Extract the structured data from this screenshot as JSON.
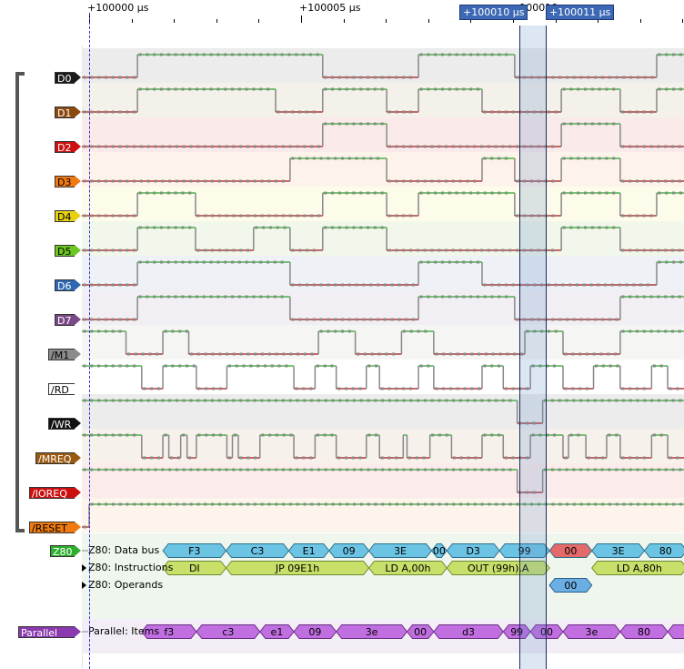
{
  "ruler": {
    "labels": [
      {
        "text": "+100000 µs",
        "t": 0
      },
      {
        "text": "+100005 µs",
        "t": 5
      },
      {
        "text": "+100010 µs",
        "t": 10
      }
    ],
    "minor_tick_step_us": 1
  },
  "cursors": [
    {
      "label": "+100010 µs",
      "t": 10.15
    },
    {
      "label": "+100011 µs",
      "t": 10.75
    }
  ],
  "trigger_t": 0,
  "time_range": {
    "start_us": -0.17,
    "end_us": 14.0
  },
  "signals": [
    {
      "name": "D0",
      "color": "#1a1a1a",
      "text_color": "#ffffff",
      "bg": "#ececec",
      "initial": 0,
      "edges": [
        1.14,
        5.51,
        7.77,
        10.04,
        13.39
      ]
    },
    {
      "name": "D1",
      "color": "#8a4a0e",
      "text_color": "#ffffff",
      "bg": "#f4f0ea",
      "initial": 0,
      "edges": [
        1.14,
        4.4,
        5.51,
        7.02,
        7.77,
        9.27,
        11.14,
        12.53,
        13.39
      ]
    },
    {
      "name": "D2",
      "color": "#cc1010",
      "text_color": "#ffffff",
      "bg": "#fbeaea",
      "initial": 0,
      "edges": [
        5.51,
        7.02,
        11.14,
        12.53
      ]
    },
    {
      "name": "D3",
      "color": "#f07a10",
      "text_color": "#000000",
      "bg": "#fdf3ea",
      "initial": 0,
      "edges": [
        4.74,
        7.02,
        9.27,
        10.04,
        11.14,
        12.53
      ]
    },
    {
      "name": "D4",
      "color": "#e8d010",
      "text_color": "#000000",
      "bg": "#fdfbea",
      "initial": 0,
      "edges": [
        1.14,
        2.51,
        5.51,
        7.02,
        7.77,
        10.04,
        11.14,
        12.53,
        13.39
      ]
    },
    {
      "name": "D5",
      "color": "#6cc820",
      "text_color": "#000000",
      "bg": "#f1f7ea",
      "initial": 0,
      "edges": [
        1.14,
        2.51,
        3.88,
        4.74,
        5.51,
        7.02,
        11.14,
        12.53
      ]
    },
    {
      "name": "D6",
      "color": "#2e68b0",
      "text_color": "#ffffff",
      "bg": "#eef1f6",
      "initial": 0,
      "edges": [
        1.14,
        4.74,
        7.77,
        9.27,
        13.39
      ]
    },
    {
      "name": "D7",
      "color": "#7a4a86",
      "text_color": "#ffffff",
      "bg": "#f1eff3",
      "initial": 0,
      "edges": [
        1.14,
        4.74,
        7.77,
        10.04,
        12.53
      ]
    },
    {
      "name": "/M1",
      "color": "#8c8c8c",
      "text_color": "#000000",
      "bg": "#f5f5f3",
      "initial": 1,
      "edges": [
        0.87,
        1.74,
        2.35,
        5.41,
        6.28,
        7.37,
        8.13,
        10.28,
        11.18,
        12.53
      ]
    },
    {
      "name": "/RD",
      "color": "#ffffff",
      "text_color": "#000000",
      "bg": "#ffffff",
      "initial": 1,
      "edges": [
        1.24,
        1.74,
        2.53,
        3.25,
        4.83,
        5.33,
        5.83,
        6.54,
        6.85,
        7.77,
        8.13,
        9.27,
        9.77,
        10.41,
        11.18,
        11.9,
        12.53,
        13.27,
        13.65
      ]
    },
    {
      "name": "/WR",
      "color": "#111111",
      "text_color": "#ffffff",
      "bg": "#ececec",
      "initial": 1,
      "edges": [
        10.1,
        10.7
      ]
    },
    {
      "name": "/MREQ",
      "color": "#9a5a10",
      "text_color": "#ffffff",
      "bg": "#f6f1eb",
      "initial": 1,
      "edges": [
        1.24,
        1.74,
        1.88,
        2.16,
        2.31,
        2.53,
        3.25,
        3.38,
        3.52,
        4.03,
        4.83,
        5.33,
        5.83,
        6.54,
        6.85,
        7.41,
        7.5,
        8.04,
        8.55,
        9.27,
        9.77,
        10.41,
        11.18,
        11.31,
        11.72,
        12.21,
        12.53,
        13.27,
        13.65
      ]
    },
    {
      "name": "/IOREQ",
      "color": "#cc1010",
      "text_color": "#ffffff",
      "bg": "#fbeceb",
      "initial": 1,
      "edges": [
        10.1,
        10.7
      ]
    },
    {
      "name": "/RESET",
      "color": "#f07a10",
      "text_color": "#000000",
      "bg": "#fdf4ec",
      "initial": 0,
      "edges": [
        0.0
      ]
    }
  ],
  "decoders": [
    {
      "name": "Z80",
      "label_color": "#2eae2e",
      "bg": "#eef6ee",
      "rows": [
        {
          "title": "Z80: Data bus",
          "has_expander": false,
          "fill": "#6cc4e4",
          "stroke": "#2e6e8a",
          "items": [
            {
              "text": "F3",
              "t0": 1.74,
              "t1": 3.23
            },
            {
              "text": "C3",
              "t0": 3.23,
              "t1": 4.71
            },
            {
              "text": "E1",
              "t0": 4.71,
              "t1": 5.66
            },
            {
              "text": "09",
              "t0": 5.66,
              "t1": 6.6
            },
            {
              "text": "3E",
              "t0": 6.6,
              "t1": 8.08
            },
            {
              "text": "00",
              "t0": 8.08,
              "t1": 8.44
            },
            {
              "text": "D3",
              "t0": 8.44,
              "t1": 9.68
            },
            {
              "text": "99",
              "t0": 9.68,
              "t1": 10.86
            },
            {
              "text": "00",
              "t0": 10.86,
              "t1": 11.86,
              "fill": "#e46a6a"
            },
            {
              "text": "3E",
              "t0": 11.86,
              "t1": 13.1
            },
            {
              "text": "80",
              "t0": 13.1,
              "t1": 14.1
            }
          ]
        },
        {
          "title": "Z80: Instructions",
          "has_expander": true,
          "fill": "#c8e06a",
          "stroke": "#6e8a2e",
          "items": [
            {
              "text": "DI",
              "t0": 1.74,
              "t1": 3.23
            },
            {
              "text": "JP 09E1h",
              "t0": 3.23,
              "t1": 6.6
            },
            {
              "text": "LD A,00h",
              "t0": 6.6,
              "t1": 8.44
            },
            {
              "text": "OUT (99h),A",
              "t0": 8.44,
              "t1": 10.86
            },
            {
              "text": "LD A,80h",
              "t0": 11.86,
              "t1": 14.1
            }
          ]
        },
        {
          "title": "Z80: Operands",
          "has_expander": true,
          "fill": "#6aaee4",
          "stroke": "#2e5e8a",
          "items": [
            {
              "text": "00",
              "t0": 10.86,
              "t1": 11.86
            }
          ]
        }
      ]
    },
    {
      "name": "Parallel",
      "label_color": "#8a3aae",
      "bg": "#f3eef5",
      "rows": [
        {
          "title": "Parallel: Items",
          "has_expander": false,
          "fill": "#c06ee0",
          "stroke": "#6a2e86",
          "items": [
            {
              "text": "f3",
              "t0": 1.24,
              "t1": 2.53
            },
            {
              "text": "c3",
              "t0": 2.53,
              "t1": 4.03
            },
            {
              "text": "e1",
              "t0": 4.03,
              "t1": 4.83
            },
            {
              "text": "09",
              "t0": 4.83,
              "t1": 5.83
            },
            {
              "text": "3e",
              "t0": 5.83,
              "t1": 7.5
            },
            {
              "text": "00",
              "t0": 7.5,
              "t1": 8.13
            },
            {
              "text": "d3",
              "t0": 8.13,
              "t1": 9.77
            },
            {
              "text": "99",
              "t0": 9.77,
              "t1": 10.41
            },
            {
              "text": "00",
              "t0": 10.41,
              "t1": 11.18
            },
            {
              "text": "3e",
              "t0": 11.18,
              "t1": 12.53
            },
            {
              "text": "80",
              "t0": 12.53,
              "t1": 13.65
            },
            {
              "text": "d",
              "t0": 13.65,
              "t1": 15.0
            }
          ]
        }
      ]
    }
  ]
}
